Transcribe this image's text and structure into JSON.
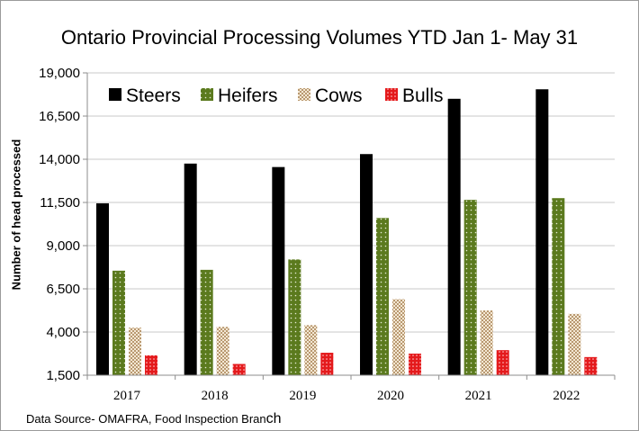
{
  "chart_data": {
    "type": "bar",
    "title": "Ontario Provincial  Processing Volumes YTD Jan 1- May 31",
    "xlabel": "",
    "ylabel": "Number of head processed",
    "categories": [
      "2017",
      "2018",
      "2019",
      "2020",
      "2021",
      "2022"
    ],
    "series": [
      {
        "name": "Steers",
        "values": [
          11450,
          13750,
          13550,
          14300,
          17500,
          18050
        ]
      },
      {
        "name": "Heifers",
        "values": [
          7550,
          7600,
          8200,
          10600,
          11650,
          11750
        ]
      },
      {
        "name": "Cows",
        "values": [
          4250,
          4300,
          4400,
          5900,
          5250,
          5050
        ]
      },
      {
        "name": "Bulls",
        "values": [
          2650,
          2150,
          2800,
          2750,
          2950,
          2550
        ]
      }
    ],
    "ylim": [
      1500,
      19000
    ],
    "yticks": [
      "1,500",
      "4,000",
      "6,500",
      "9,000",
      "11,500",
      "14,000",
      "16,500",
      "19,000"
    ],
    "ytick_values": [
      1500,
      4000,
      6500,
      9000,
      11500,
      14000,
      16500,
      19000
    ],
    "grid": true,
    "legend_position": "top",
    "colors": {
      "Steers": "#000000",
      "Heifers": "#5b7a1e",
      "Cows": "#e8d4b4",
      "Bulls": "#e41a1c",
      "grid": "#c8c8c8",
      "axis": "#8c8c8c"
    }
  },
  "source": {
    "text": "Data Source- OMAFRA, Food Inspection Bran",
    "tail": "ch"
  }
}
